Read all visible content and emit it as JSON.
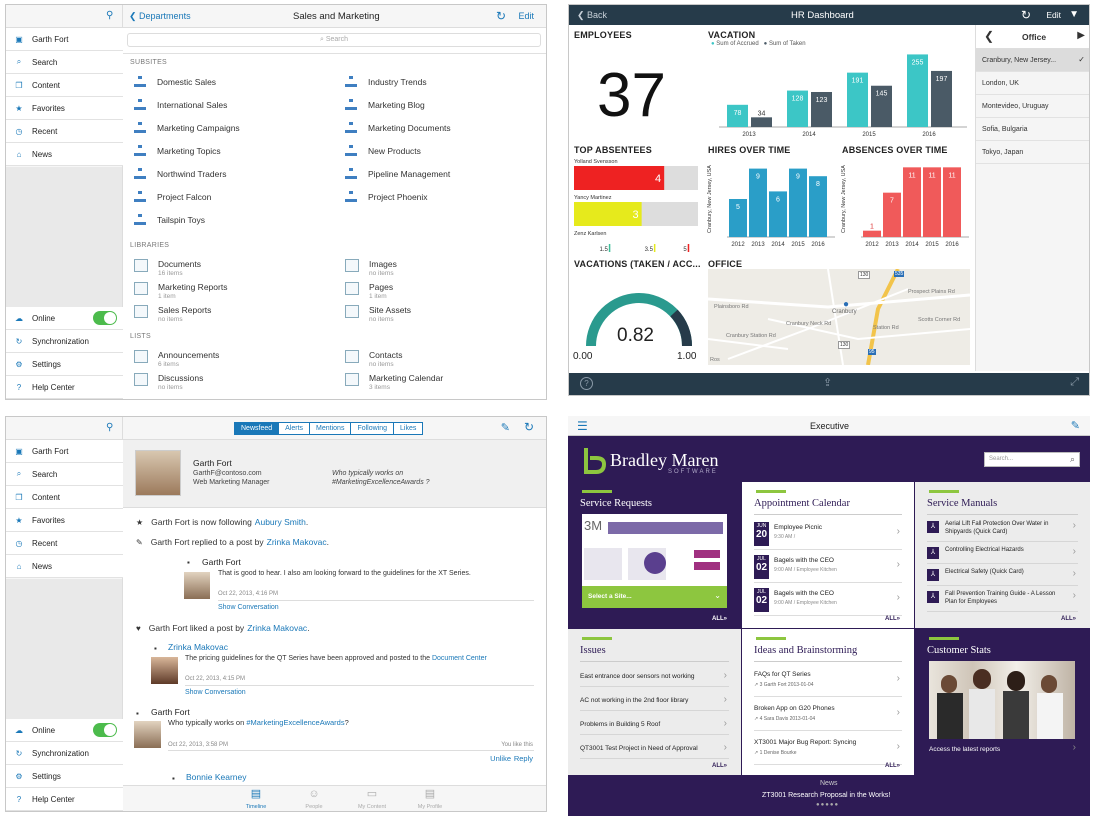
{
  "p1": {
    "back": "Departments",
    "title": "Sales and Marketing",
    "edit": "Edit",
    "search": "Search",
    "user": "Garth Fort",
    "nav": [
      "Search",
      "Content",
      "Favorites",
      "Recent",
      "News"
    ],
    "bottom": [
      "Online",
      "Synchronization",
      "Settings",
      "Help Center"
    ],
    "subsites_h": "SUBSITES",
    "subsites": [
      "Domestic Sales",
      "Industry Trends",
      "International Sales",
      "Marketing Blog",
      "Marketing Campaigns",
      "Marketing Documents",
      "Marketing Topics",
      "New Products",
      "Northwind Traders",
      "Pipeline Management",
      "Project Falcon",
      "Project Phoenix",
      "Tailspin Toys"
    ],
    "libraries_h": "LIBRARIES",
    "libraries": [
      {
        "n": "Documents",
        "s": "16 items"
      },
      {
        "n": "Images",
        "s": "no items"
      },
      {
        "n": "Marketing Reports",
        "s": "1 item"
      },
      {
        "n": "Pages",
        "s": "1 item"
      },
      {
        "n": "Sales Reports",
        "s": "no items"
      },
      {
        "n": "Site Assets",
        "s": "no items"
      }
    ],
    "lists_h": "LISTS",
    "lists": [
      {
        "n": "Announcements",
        "s": "6 items"
      },
      {
        "n": "Contacts",
        "s": "no items"
      },
      {
        "n": "Discussions",
        "s": "no items"
      },
      {
        "n": "Marketing Calendar",
        "s": "3 items"
      }
    ]
  },
  "p2": {
    "back": "Back",
    "title": "HR Dashboard",
    "edit": "Edit",
    "employees_h": "EMPLOYEES",
    "employees": "37",
    "vacation_h": "VACATION",
    "leg1": "Sum of Accrued",
    "leg2": "Sum of Taken",
    "absentees_h": "TOP ABSENTEES",
    "ab": [
      {
        "n": "Yolland Svensson",
        "v": "4"
      },
      {
        "n": "Yancy Martinez",
        "v": "3"
      },
      {
        "n": "Zenz Karlsen",
        "v": ""
      }
    ],
    "abscale": [
      "1.5",
      "3.5",
      "5"
    ],
    "hires_h": "HIRES OVER TIME",
    "absences_h": "ABSENCES OVER TIME",
    "yaxis": "Cranbury, New Jersey, USA",
    "vacations_h": "VACATIONS (TAKEN / ACC...",
    "gauge": "0.82",
    "gmin": "0.00",
    "gmax": "1.00",
    "office_h": "OFFICE",
    "office_col": "Office",
    "offices": [
      "Cranbury, New Jersey...",
      "London, UK",
      "Montevideo, Uruguay",
      "Sofia, Bulgaria",
      "Tokyo, Japan"
    ],
    "map": [
      "Cranbury Neck Rd",
      "Scotts Corner Rd",
      "Plainsboro Rd",
      "Prospect Plains Rd",
      "Station Rd",
      "Cranbury",
      "Cranbury Station Rd",
      "Ros"
    ],
    "map_shields": [
      "130",
      "535",
      "130",
      "33",
      "95",
      "130",
      "535"
    ]
  },
  "p3": {
    "tabs": [
      "Newsfeed",
      "Alerts",
      "Mentions",
      "Following",
      "Likes"
    ],
    "user": "Garth Fort",
    "email": "GarthF@contoso.com",
    "role": "Web Marketing Manager",
    "q1": "Who typically works on",
    "q2": "#MarketingExcellenceAwards ?",
    "f1a": "Garth Fort is now following ",
    "f1b": "Aubury Smith",
    "f2a": "Garth Fort replied to a post by ",
    "f2b": "Zrinka Makovac",
    "r1n": "Garth Fort",
    "r1t": "That is good to hear. I also am looking forward to the guidelines for the XT Series.",
    "r1d": "Oct 22, 2013, 4:16 PM",
    "show": "Show Conversation",
    "f3a": "Garth Fort liked a post by ",
    "f3b": "Zrinka Makovac",
    "r2n": "Zrinka Makovac",
    "r2t": "The pricing guidelines for the QT Series have been approved and posted to the ",
    "r2l": "Document Center",
    "r2d": "Oct 22, 2013, 4:15 PM",
    "r3n": "Garth Fort",
    "r3a": "Who typically works on ",
    "r3b": "#MarketingExcellenceAwards",
    "r3c": "?",
    "r3d": "Oct 22, 2013, 3:58 PM",
    "like": "You like this",
    "unlike": "Unlike",
    "reply": "Reply",
    "r4n": "Bonnie Kearney",
    "bottom_tabs": [
      "Timeline",
      "People",
      "My Content",
      "My Profile"
    ]
  },
  "p4": {
    "title": "Executive",
    "brand": "Bradley Maren",
    "brand_sub": "SOFTWARE",
    "search": "Search...",
    "sr_h": "Service Requests",
    "sr_num": "3M",
    "sr_select": "Select a Site...",
    "all": "ALL",
    "ac_h": "Appointment Calendar",
    "ac": [
      {
        "m": "JUN",
        "d": "20",
        "t": "Employee Picnic",
        "s": "9:30 AM /"
      },
      {
        "m": "JUL",
        "d": "02",
        "t": "Bagels with the CEO",
        "s": "9:00 AM / Employee Kitchen"
      },
      {
        "m": "JUL",
        "d": "02",
        "t": "Bagels with the CEO",
        "s": "9:00 AM / Employee Kitchen"
      }
    ],
    "sm_h": "Service Manuals",
    "sm": [
      "Aerial Lift Fall Protection Over Water in Shipyards (Quick Card)",
      "Controlling Electrical Hazards",
      "Electrical Safety (Quick Card)",
      "Fall Prevention Training Guide - A Lesson Plan for Employees"
    ],
    "is_h": "Issues",
    "is": [
      "East entrance door sensors not working",
      "AC not working in the 2nd floor library",
      "Problems in Building 5 Roof",
      "QT3001 Test Project in Need of Approval"
    ],
    "ib_h": "Ideas and Brainstorming",
    "ib": [
      {
        "t": "FAQs for QT Series",
        "s": "↗ 3  Garth Fort  2013-01-04"
      },
      {
        "t": "Broken App on G20 Phones",
        "s": "↗ 4  Sara Davis  2013-01-04"
      },
      {
        "t": "XT3001 Major Bug Report: Syncing",
        "s": "↗ 1  Denise Bourke"
      }
    ],
    "cs_h": "Customer Stats",
    "cs_link": "Access the latest reports",
    "news_h": "News",
    "news": "ZT3001 Research Proposal in the Works!"
  },
  "colors": {
    "blue": "#1a78b8",
    "teal": "#3cc6c6",
    "dark": "#4a5a66",
    "barblue": "#2a9ec8",
    "barred": "#f05a5a",
    "purple": "#2e1b55",
    "green": "#8dc63f"
  },
  "chart_data": [
    {
      "type": "bar",
      "title": "VACATION",
      "categories": [
        "2013",
        "2014",
        "2015",
        "2016"
      ],
      "series": [
        {
          "name": "Sum of Accrued",
          "values": [
            78,
            128,
            191,
            255
          ]
        },
        {
          "name": "Sum of Taken",
          "values": [
            34,
            123,
            145,
            197
          ]
        }
      ],
      "ylim": [
        0,
        260
      ]
    },
    {
      "type": "bar",
      "title": "TOP ABSENTEES",
      "categories": [
        "Yolland Svensson",
        "Yancy Martinez",
        "Zenz Karlsen"
      ],
      "values": [
        4,
        3,
        0
      ],
      "xlim": [
        0,
        5.5
      ]
    },
    {
      "type": "bar",
      "title": "HIRES OVER TIME",
      "categories": [
        "2012",
        "2013",
        "2014",
        "2015",
        "2016"
      ],
      "values": [
        5,
        9,
        6,
        9,
        8
      ],
      "ylabel": "Cranbury, New Jersey, USA",
      "ylim": [
        0,
        10
      ]
    },
    {
      "type": "bar",
      "title": "ABSENCES OVER TIME",
      "categories": [
        "2012",
        "2013",
        "2014",
        "2015",
        "2016"
      ],
      "values": [
        1,
        7,
        11,
        11,
        11
      ],
      "ylabel": "Cranbury, New Jersey, USA",
      "ylim": [
        0,
        12
      ]
    }
  ]
}
